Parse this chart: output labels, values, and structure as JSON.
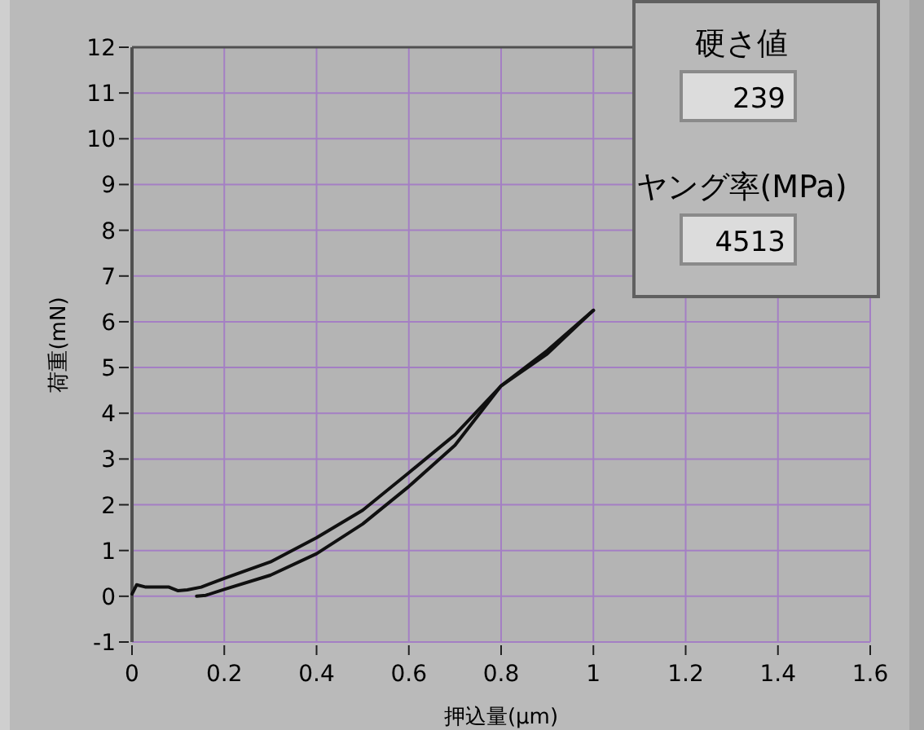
{
  "chart_data": {
    "type": "line",
    "xlabel": "押込量(μm)",
    "ylabel": "荷重(mN)",
    "xlim": [
      0,
      1.6
    ],
    "ylim": [
      -1,
      12
    ],
    "xticks": [
      0,
      0.2,
      0.4,
      0.6,
      0.8,
      1,
      1.2,
      1.4,
      1.6
    ],
    "yticks": [
      -1,
      0,
      1,
      2,
      3,
      4,
      5,
      6,
      7,
      8,
      9,
      10,
      11,
      12
    ],
    "grid": true,
    "marker": "none",
    "line_style": "solid",
    "annotations": [
      "硬さ値",
      "239",
      "ヤング率(MPa)",
      "4513"
    ],
    "series": [
      {
        "color": "#101010",
        "x": [
          0,
          0.01,
          0.03,
          0.08,
          0.1,
          0.12,
          0.15,
          0.2,
          0.3,
          0.4,
          0.5,
          0.6,
          0.7,
          0.8,
          0.9,
          1.0
        ],
        "values": [
          0.05,
          0.25,
          0.2,
          0.2,
          0.12,
          0.14,
          0.2,
          0.39,
          0.75,
          1.28,
          1.88,
          2.7,
          3.53,
          4.6,
          5.37,
          6.25
        ]
      },
      {
        "color": "#101010",
        "x": [
          1.0,
          0.9,
          0.8,
          0.7,
          0.6,
          0.5,
          0.4,
          0.3,
          0.2,
          0.16,
          0.14
        ],
        "values": [
          6.25,
          5.3,
          4.6,
          3.3,
          2.4,
          1.58,
          0.93,
          0.46,
          0.15,
          0.02,
          0.0
        ]
      }
    ]
  }
}
